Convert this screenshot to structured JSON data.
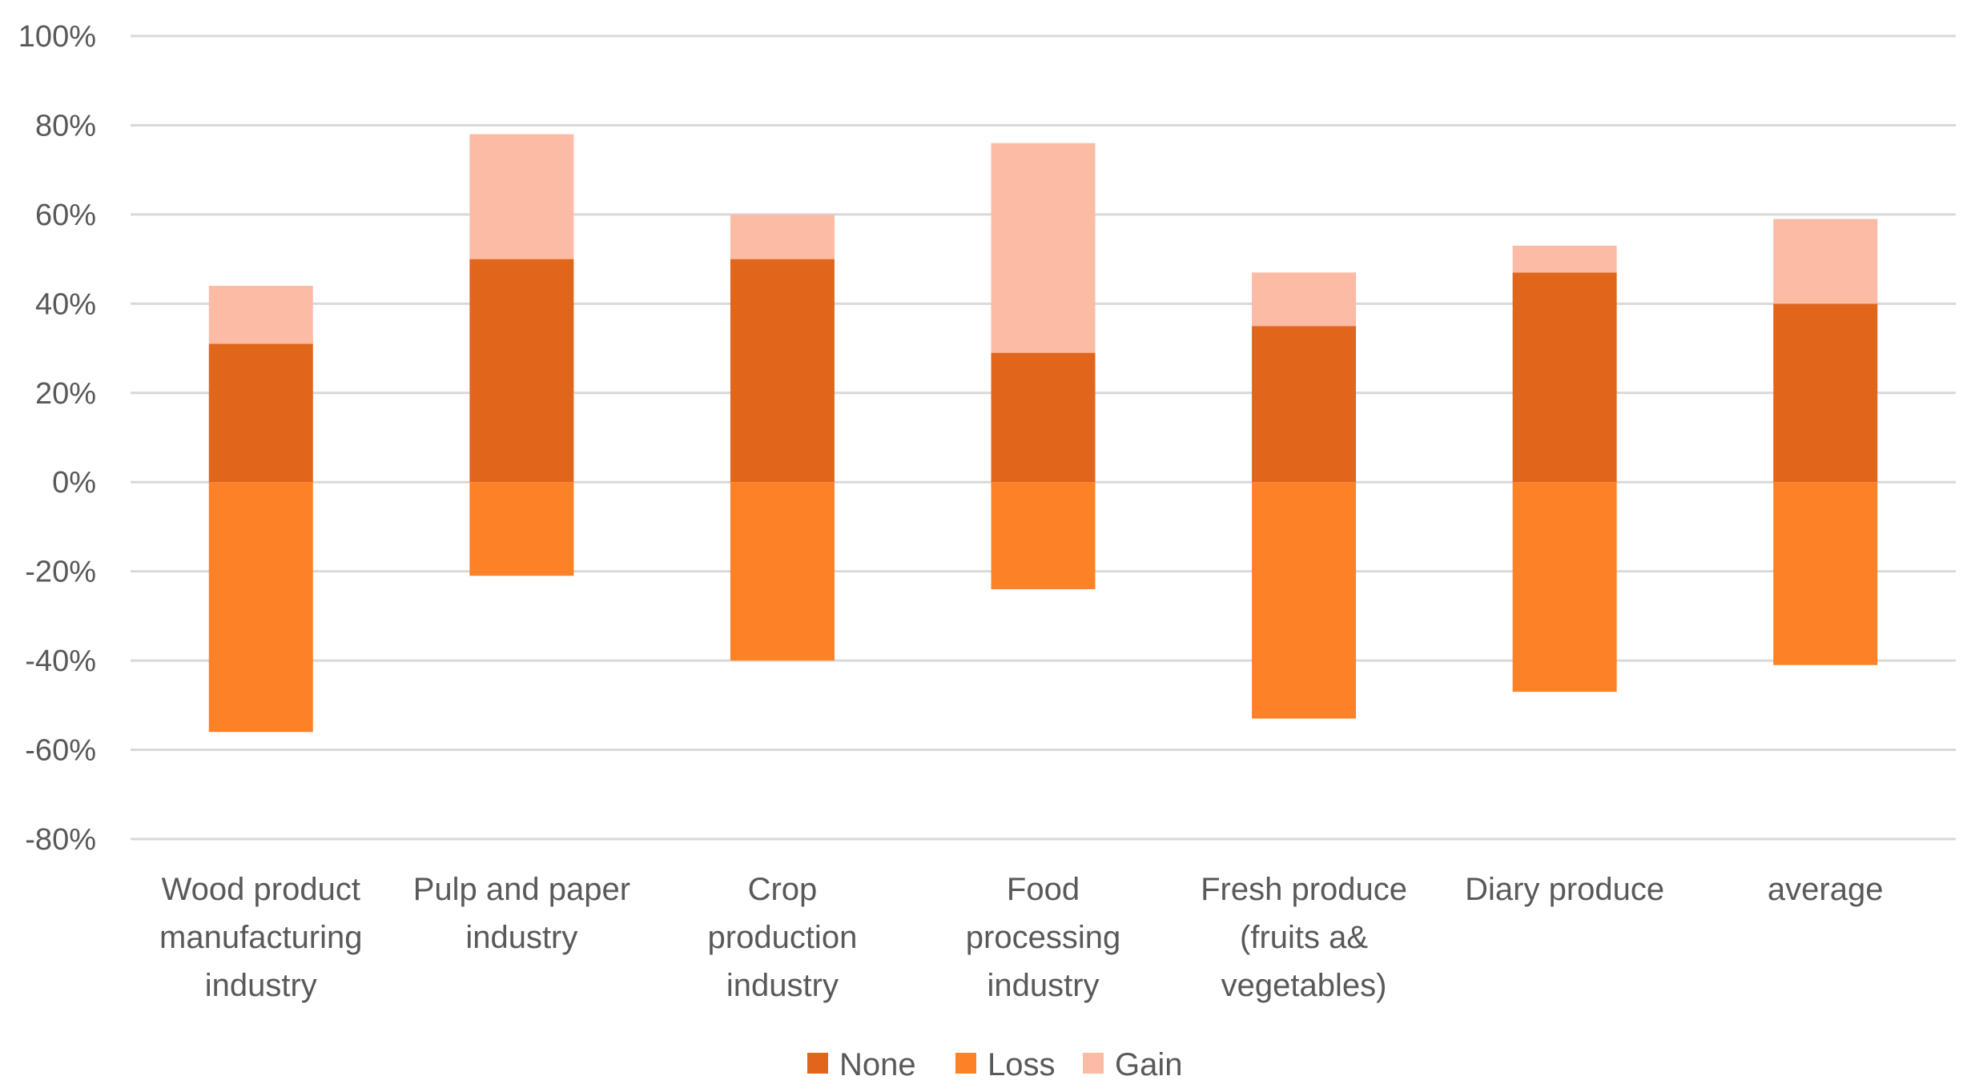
{
  "chart_data": {
    "type": "bar",
    "stacked": true,
    "title": "",
    "xlabel": "",
    "ylabel": "",
    "ylim": [
      -80,
      100
    ],
    "y_ticks": [
      100,
      80,
      60,
      40,
      20,
      0,
      -20,
      -40,
      -60,
      -80
    ],
    "y_tick_labels": [
      "100%",
      "80%",
      "60%",
      "40%",
      "20%",
      "0%",
      "-20%",
      "-40%",
      "-60%",
      "-80%"
    ],
    "grid": true,
    "legend_position": "bottom-center",
    "categories": [
      [
        "Wood product",
        "manufacturing",
        "industry"
      ],
      [
        "Pulp and paper",
        "industry"
      ],
      [
        "Crop",
        "production",
        "industry"
      ],
      [
        "Food",
        "processing",
        "industry"
      ],
      [
        "Fresh produce",
        "(fruits a&",
        "vegetables)"
      ],
      [
        "Diary produce"
      ],
      [
        "average"
      ]
    ],
    "series": [
      {
        "name": "None",
        "color": "#E0661C",
        "values": [
          31,
          50,
          50,
          29,
          35,
          47,
          40
        ]
      },
      {
        "name": "Loss",
        "color": "#FD8126",
        "values": [
          -56,
          -21,
          -40,
          -24,
          -53,
          -47,
          -41
        ]
      },
      {
        "name": "Gain",
        "color": "#FCBBA4",
        "values": [
          13,
          28,
          10,
          47,
          12,
          6,
          19
        ]
      }
    ]
  }
}
